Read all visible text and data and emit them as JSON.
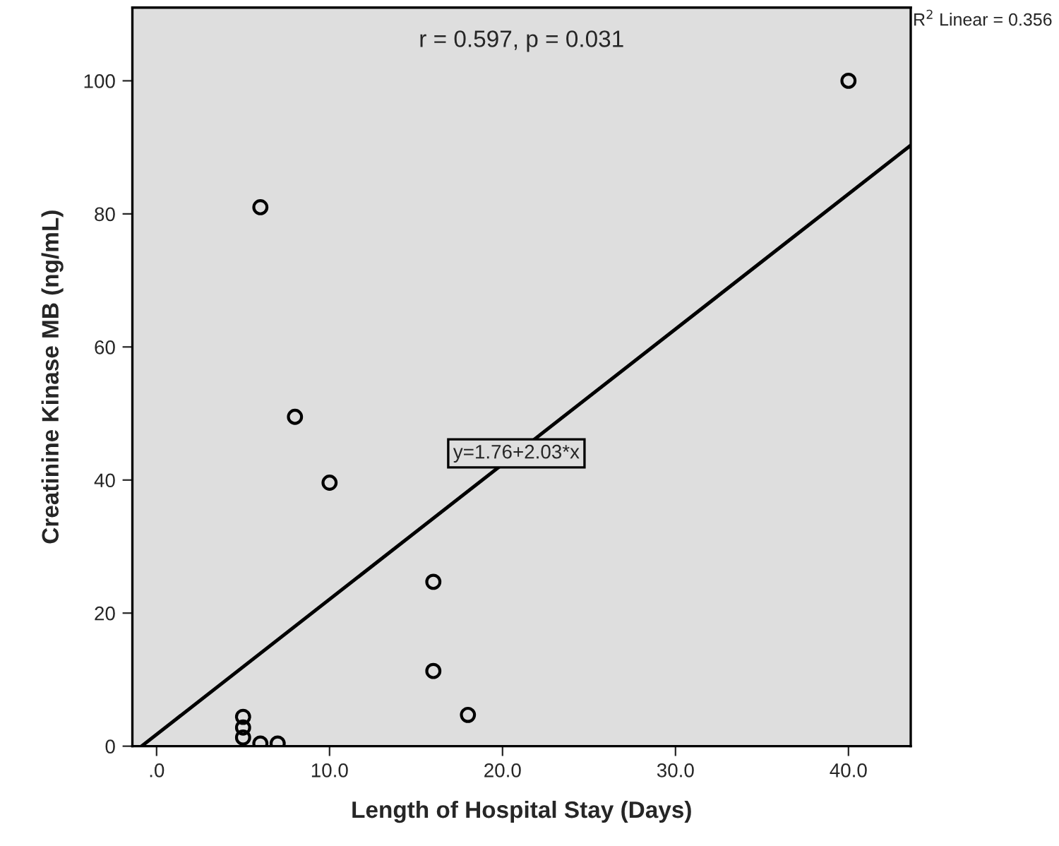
{
  "chart_data": {
    "type": "scatter",
    "xlabel": "Length of Hospital Stay (Days)",
    "ylabel": "Creatinine Kinase MB (ng/mL)",
    "annotations": [
      "r = 0.597, p = 0.031",
      {
        "text": "y=1.76+2.03*x",
        "x": 20.8,
        "y": 44
      },
      "R$^{2}$ Linear = 0.356"
    ],
    "series": [
      {
        "color": "#000000",
        "marker": "circle",
        "x": [
          40,
          6,
          8,
          10,
          16,
          16,
          18,
          5,
          5,
          5,
          6,
          7
        ],
        "values": [
          100,
          81,
          49.5,
          39.6,
          24.7,
          11.3,
          4.7,
          4.4,
          2.8,
          1.3,
          0.4,
          0.4
        ]
      },
      {
        "type": "line",
        "color": "#000000",
        "line_style": "solid",
        "x": [
          -0.87,
          43.6
        ],
        "values": [
          0,
          90.3
        ]
      }
    ],
    "xlim": [
      -1.4,
      43.6
    ],
    "ylim": [
      0,
      111
    ],
    "xticks": [
      {
        "value": 0,
        "label": ".0"
      },
      {
        "value": 10,
        "label": "10.0"
      },
      {
        "value": 20,
        "label": "20.0"
      },
      {
        "value": 30,
        "label": "30.0"
      },
      {
        "value": 40,
        "label": "40.0"
      }
    ],
    "yticks": [
      0,
      20,
      40,
      60,
      80,
      100
    ],
    "grid": false,
    "legend": false
  }
}
